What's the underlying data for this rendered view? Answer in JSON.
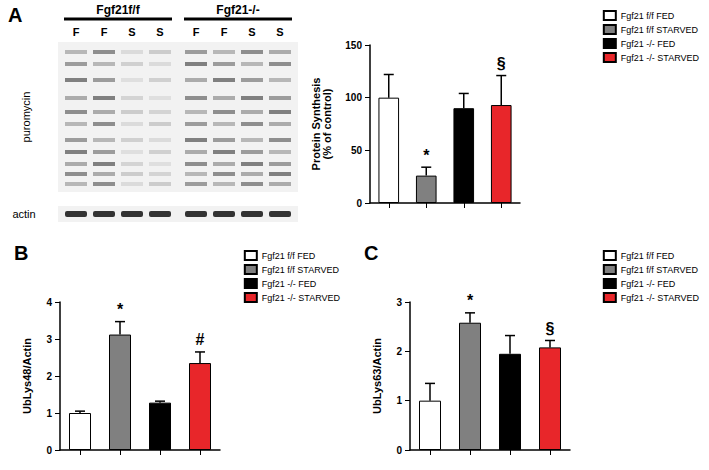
{
  "blot": {
    "panel": "A",
    "groups": [
      {
        "label": "Fgf21f/f",
        "lanes": [
          "F",
          "F",
          "S",
          "S"
        ]
      },
      {
        "label": "Fgf21-/-",
        "lanes": [
          "F",
          "F",
          "S",
          "S"
        ]
      }
    ],
    "rows": [
      "puromycin",
      "actin"
    ]
  },
  "chart_data": [
    {
      "type": "bar",
      "y_label": "Protein Synthesis\n(% of control)",
      "categories": [
        null,
        null,
        null,
        null
      ],
      "names": [
        "Fgf21 f/f FED",
        "Fgf21 f/f STARVED",
        "Fgf21 -/- FED",
        "Fgf21 -/- STARVED"
      ],
      "values": [
        100,
        26,
        90,
        93
      ],
      "errors": [
        22,
        8,
        14,
        28
      ],
      "colors": [
        "#ffffff",
        "#808080",
        "#000000",
        "#e8262a"
      ],
      "annotations": [
        null,
        "*",
        null,
        "§"
      ],
      "ylim": [
        0,
        150
      ],
      "yticks": [
        0,
        50,
        100,
        150
      ],
      "grid": false,
      "legend": "upper right"
    },
    {
      "type": "bar",
      "panel": "B",
      "y_label": "UbLys48/Actin",
      "categories": [
        null,
        null,
        null,
        null
      ],
      "names": [
        "Fgf21 f/f FED",
        "Fgf21 f/f STARVED",
        "Fgf21 -/- FED",
        "Fgf21 -/- STARVED"
      ],
      "values": [
        1.0,
        3.12,
        1.28,
        2.35
      ],
      "errors": [
        0.05,
        0.35,
        0.04,
        0.3
      ],
      "colors": [
        "#ffffff",
        "#808080",
        "#000000",
        "#e8262a"
      ],
      "annotations": [
        null,
        "*",
        null,
        "#"
      ],
      "ylim": [
        0,
        4
      ],
      "yticks": [
        0,
        1,
        2,
        3,
        4
      ],
      "grid": false,
      "legend": "upper right"
    },
    {
      "type": "bar",
      "panel": "C",
      "y_label": "UbLys63/Actin",
      "categories": [
        null,
        null,
        null,
        null
      ],
      "names": [
        "Fgf21 f/f FED",
        "Fgf21 f/f STARVED",
        "Fgf21 -/- FED",
        "Fgf21 -/- STARVED"
      ],
      "values": [
        1.0,
        2.58,
        1.95,
        2.08
      ],
      "errors": [
        0.35,
        0.2,
        0.37,
        0.14
      ],
      "colors": [
        "#ffffff",
        "#808080",
        "#000000",
        "#e8262a"
      ],
      "annotations": [
        null,
        "*",
        null,
        "§"
      ],
      "ylim": [
        0,
        3
      ],
      "yticks": [
        0,
        1,
        2,
        3
      ],
      "grid": false,
      "legend": "upper right"
    }
  ]
}
